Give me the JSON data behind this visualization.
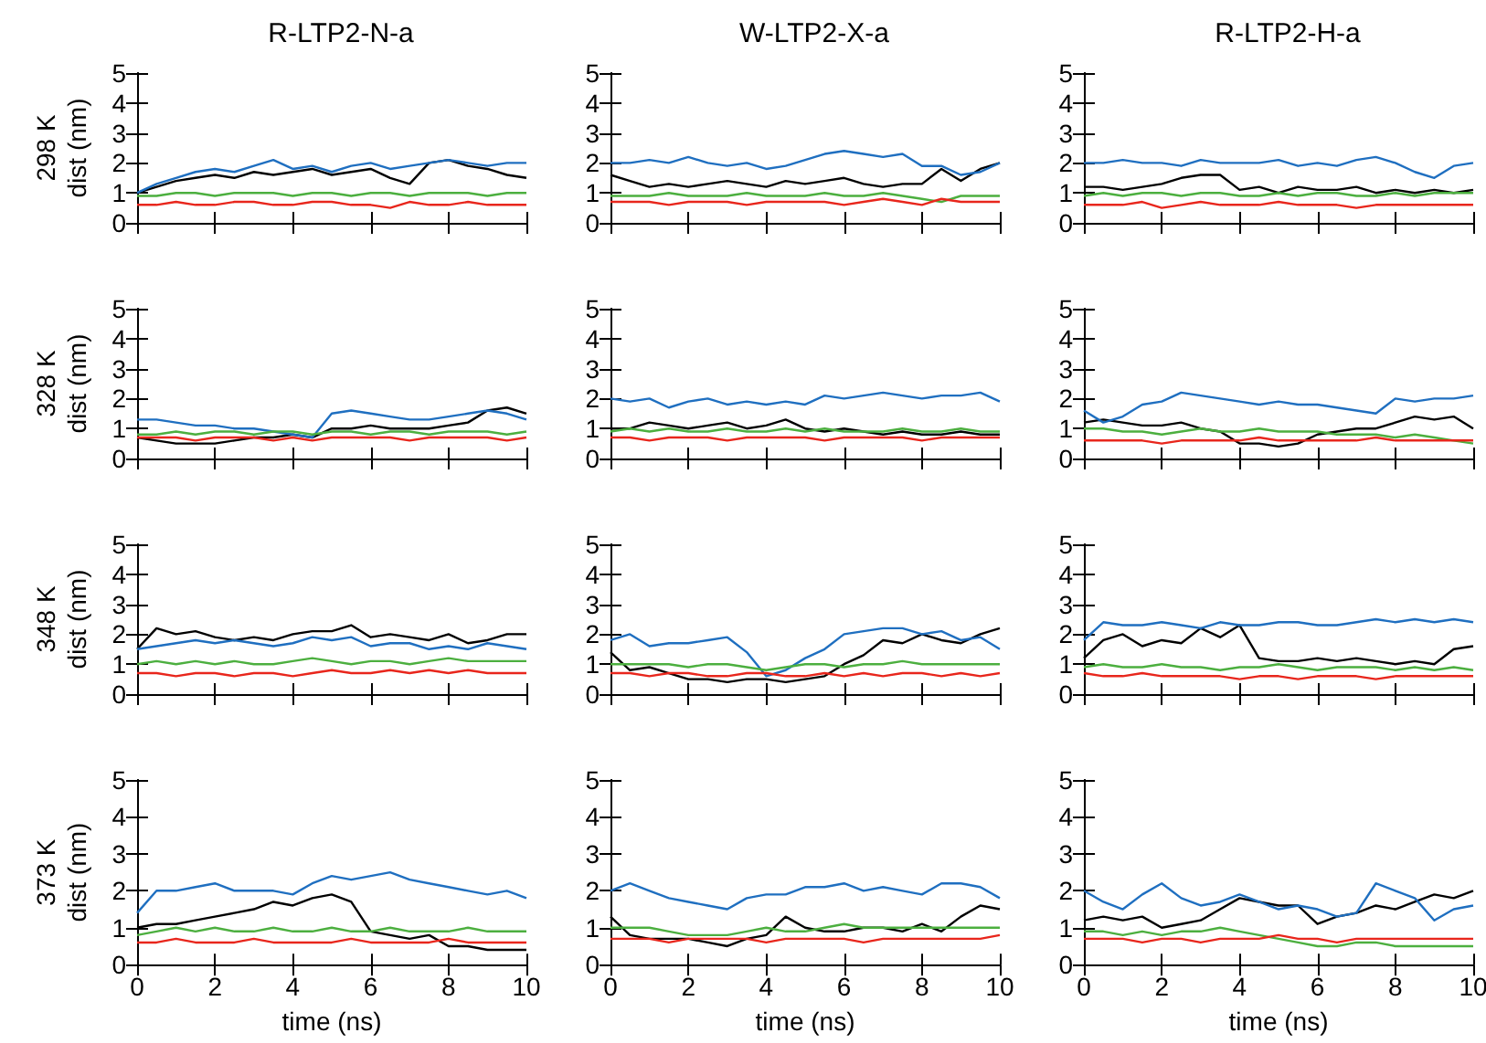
{
  "chart_data": [
    {
      "type": "line",
      "title": "R-LTP2-N-a",
      "ylabel": "298 K\ndist (nm)",
      "tick_labels": "y",
      "marker": "none",
      "x": [
        0,
        0.5,
        1,
        1.5,
        2,
        2.5,
        3,
        3.5,
        4,
        4.5,
        5,
        5.5,
        6,
        6.5,
        7,
        7.5,
        8,
        8.5,
        9,
        9.5,
        10
      ],
      "xlim": [
        0,
        10
      ],
      "xticks": [
        0,
        2,
        4,
        6,
        8,
        10
      ],
      "ylim": [
        0,
        5
      ],
      "yticks": [
        0,
        1,
        2,
        3,
        4,
        5
      ],
      "series": [
        {
          "color": "#000000",
          "values": [
            1.0,
            1.2,
            1.4,
            1.5,
            1.6,
            1.5,
            1.7,
            1.6,
            1.7,
            1.8,
            1.6,
            1.7,
            1.8,
            1.5,
            1.3,
            2.0,
            2.1,
            1.9,
            1.8,
            1.6,
            1.5
          ]
        },
        {
          "color": "#1f6fc0",
          "values": [
            1.0,
            1.3,
            1.5,
            1.7,
            1.8,
            1.7,
            1.9,
            2.1,
            1.8,
            1.9,
            1.7,
            1.9,
            2.0,
            1.8,
            1.9,
            2.0,
            2.1,
            2.0,
            1.9,
            2.0,
            2.0
          ]
        },
        {
          "color": "#4caf3f",
          "values": [
            0.9,
            0.9,
            1.0,
            1.0,
            0.9,
            1.0,
            1.0,
            1.0,
            0.9,
            1.0,
            1.0,
            0.9,
            1.0,
            1.0,
            0.9,
            1.0,
            1.0,
            1.0,
            0.9,
            1.0,
            1.0
          ]
        },
        {
          "color": "#e8261c",
          "values": [
            0.6,
            0.6,
            0.7,
            0.6,
            0.6,
            0.7,
            0.7,
            0.6,
            0.6,
            0.7,
            0.7,
            0.6,
            0.6,
            0.5,
            0.7,
            0.6,
            0.6,
            0.7,
            0.6,
            0.6,
            0.6
          ]
        }
      ]
    },
    {
      "type": "line",
      "title": "W-LTP2-X-a",
      "tick_labels": "y",
      "marker": "none",
      "x": [
        0,
        0.5,
        1,
        1.5,
        2,
        2.5,
        3,
        3.5,
        4,
        4.5,
        5,
        5.5,
        6,
        6.5,
        7,
        7.5,
        8,
        8.5,
        9,
        9.5,
        10
      ],
      "xlim": [
        0,
        10
      ],
      "xticks": [
        0,
        2,
        4,
        6,
        8,
        10
      ],
      "ylim": [
        0,
        5
      ],
      "yticks": [
        0,
        1,
        2,
        3,
        4,
        5
      ],
      "series": [
        {
          "color": "#000000",
          "values": [
            1.6,
            1.4,
            1.2,
            1.3,
            1.2,
            1.3,
            1.4,
            1.3,
            1.2,
            1.4,
            1.3,
            1.4,
            1.5,
            1.3,
            1.2,
            1.3,
            1.3,
            1.8,
            1.4,
            1.8,
            2.0
          ]
        },
        {
          "color": "#1f6fc0",
          "values": [
            2.0,
            2.0,
            2.1,
            2.0,
            2.2,
            2.0,
            1.9,
            2.0,
            1.8,
            1.9,
            2.1,
            2.3,
            2.4,
            2.3,
            2.2,
            2.3,
            1.9,
            1.9,
            1.6,
            1.7,
            2.0
          ]
        },
        {
          "color": "#4caf3f",
          "values": [
            0.9,
            0.9,
            0.9,
            1.0,
            0.9,
            0.9,
            0.9,
            1.0,
            0.9,
            0.9,
            0.9,
            1.0,
            0.9,
            0.9,
            1.0,
            0.9,
            0.8,
            0.7,
            0.9,
            0.9,
            0.9
          ]
        },
        {
          "color": "#e8261c",
          "values": [
            0.7,
            0.7,
            0.7,
            0.6,
            0.7,
            0.7,
            0.7,
            0.6,
            0.7,
            0.7,
            0.7,
            0.7,
            0.6,
            0.7,
            0.8,
            0.7,
            0.6,
            0.8,
            0.7,
            0.7,
            0.7
          ]
        }
      ]
    },
    {
      "type": "line",
      "title": "R-LTP2-H-a",
      "tick_labels": "y",
      "marker": "none",
      "x": [
        0,
        0.5,
        1,
        1.5,
        2,
        2.5,
        3,
        3.5,
        4,
        4.5,
        5,
        5.5,
        6,
        6.5,
        7,
        7.5,
        8,
        8.5,
        9,
        9.5,
        10
      ],
      "xlim": [
        0,
        10
      ],
      "xticks": [
        0,
        2,
        4,
        6,
        8,
        10
      ],
      "ylim": [
        0,
        5
      ],
      "yticks": [
        0,
        1,
        2,
        3,
        4,
        5
      ],
      "series": [
        {
          "color": "#000000",
          "values": [
            1.2,
            1.2,
            1.1,
            1.2,
            1.3,
            1.5,
            1.6,
            1.6,
            1.1,
            1.2,
            1.0,
            1.2,
            1.1,
            1.1,
            1.2,
            1.0,
            1.1,
            1.0,
            1.1,
            1.0,
            1.1
          ]
        },
        {
          "color": "#1f6fc0",
          "values": [
            2.0,
            2.0,
            2.1,
            2.0,
            2.0,
            1.9,
            2.1,
            2.0,
            2.0,
            2.0,
            2.1,
            1.9,
            2.0,
            1.9,
            2.1,
            2.2,
            2.0,
            1.7,
            1.5,
            1.9,
            2.0
          ]
        },
        {
          "color": "#4caf3f",
          "values": [
            0.9,
            1.0,
            0.9,
            1.0,
            1.0,
            0.9,
            1.0,
            1.0,
            0.9,
            0.9,
            1.0,
            0.9,
            1.0,
            1.0,
            0.9,
            0.9,
            1.0,
            0.9,
            1.0,
            1.0,
            1.0
          ]
        },
        {
          "color": "#e8261c",
          "values": [
            0.6,
            0.6,
            0.6,
            0.7,
            0.5,
            0.6,
            0.7,
            0.6,
            0.6,
            0.6,
            0.7,
            0.6,
            0.6,
            0.6,
            0.5,
            0.6,
            0.6,
            0.6,
            0.6,
            0.6,
            0.6
          ]
        }
      ]
    },
    {
      "type": "line",
      "ylabel": "328 K\ndist (nm)",
      "tick_labels": "y",
      "marker": "none",
      "x": [
        0,
        0.5,
        1,
        1.5,
        2,
        2.5,
        3,
        3.5,
        4,
        4.5,
        5,
        5.5,
        6,
        6.5,
        7,
        7.5,
        8,
        8.5,
        9,
        9.5,
        10
      ],
      "xlim": [
        0,
        10
      ],
      "xticks": [
        0,
        2,
        4,
        6,
        8,
        10
      ],
      "ylim": [
        0,
        5
      ],
      "yticks": [
        0,
        1,
        2,
        3,
        4,
        5
      ],
      "series": [
        {
          "color": "#000000",
          "values": [
            0.7,
            0.6,
            0.5,
            0.5,
            0.5,
            0.6,
            0.7,
            0.7,
            0.8,
            0.7,
            1.0,
            1.0,
            1.1,
            1.0,
            1.0,
            1.0,
            1.1,
            1.2,
            1.6,
            1.7,
            1.5
          ]
        },
        {
          "color": "#1f6fc0",
          "values": [
            1.3,
            1.3,
            1.2,
            1.1,
            1.1,
            1.0,
            1.0,
            0.9,
            0.8,
            0.7,
            1.5,
            1.6,
            1.5,
            1.4,
            1.3,
            1.3,
            1.4,
            1.5,
            1.6,
            1.5,
            1.3
          ]
        },
        {
          "color": "#4caf3f",
          "values": [
            0.8,
            0.8,
            0.9,
            0.8,
            0.9,
            0.9,
            0.8,
            0.9,
            0.9,
            0.8,
            0.9,
            0.9,
            0.8,
            0.9,
            0.9,
            0.8,
            0.9,
            0.9,
            0.9,
            0.8,
            0.9
          ]
        },
        {
          "color": "#e8261c",
          "values": [
            0.7,
            0.7,
            0.7,
            0.6,
            0.7,
            0.7,
            0.7,
            0.6,
            0.7,
            0.6,
            0.7,
            0.7,
            0.7,
            0.7,
            0.6,
            0.7,
            0.7,
            0.7,
            0.7,
            0.6,
            0.7
          ]
        }
      ]
    },
    {
      "type": "line",
      "tick_labels": "y",
      "marker": "none",
      "x": [
        0,
        0.5,
        1,
        1.5,
        2,
        2.5,
        3,
        3.5,
        4,
        4.5,
        5,
        5.5,
        6,
        6.5,
        7,
        7.5,
        8,
        8.5,
        9,
        9.5,
        10
      ],
      "xlim": [
        0,
        10
      ],
      "xticks": [
        0,
        2,
        4,
        6,
        8,
        10
      ],
      "ylim": [
        0,
        5
      ],
      "yticks": [
        0,
        1,
        2,
        3,
        4,
        5
      ],
      "series": [
        {
          "color": "#000000",
          "values": [
            1.0,
            1.0,
            1.2,
            1.1,
            1.0,
            1.1,
            1.2,
            1.0,
            1.1,
            1.3,
            1.0,
            0.9,
            1.0,
            0.9,
            0.8,
            0.9,
            0.8,
            0.8,
            0.9,
            0.8,
            0.8
          ]
        },
        {
          "color": "#1f6fc0",
          "values": [
            2.0,
            1.9,
            2.0,
            1.7,
            1.9,
            2.0,
            1.8,
            1.9,
            1.8,
            1.9,
            1.8,
            2.1,
            2.0,
            2.1,
            2.2,
            2.1,
            2.0,
            2.1,
            2.1,
            2.2,
            1.9
          ]
        },
        {
          "color": "#4caf3f",
          "values": [
            0.9,
            1.0,
            0.9,
            1.0,
            0.9,
            0.9,
            1.0,
            0.9,
            0.9,
            1.0,
            0.9,
            1.0,
            0.9,
            0.9,
            0.9,
            1.0,
            0.9,
            0.9,
            1.0,
            0.9,
            0.9
          ]
        },
        {
          "color": "#e8261c",
          "values": [
            0.7,
            0.7,
            0.6,
            0.7,
            0.7,
            0.7,
            0.6,
            0.7,
            0.7,
            0.7,
            0.7,
            0.6,
            0.7,
            0.7,
            0.7,
            0.7,
            0.6,
            0.7,
            0.7,
            0.7,
            0.7
          ]
        }
      ]
    },
    {
      "type": "line",
      "tick_labels": "y",
      "marker": "none",
      "x": [
        0,
        0.5,
        1,
        1.5,
        2,
        2.5,
        3,
        3.5,
        4,
        4.5,
        5,
        5.5,
        6,
        6.5,
        7,
        7.5,
        8,
        8.5,
        9,
        9.5,
        10
      ],
      "xlim": [
        0,
        10
      ],
      "xticks": [
        0,
        2,
        4,
        6,
        8,
        10
      ],
      "ylim": [
        0,
        5
      ],
      "yticks": [
        0,
        1,
        2,
        3,
        4,
        5
      ],
      "series": [
        {
          "color": "#000000",
          "values": [
            1.2,
            1.3,
            1.2,
            1.1,
            1.1,
            1.2,
            1.0,
            0.9,
            0.5,
            0.5,
            0.4,
            0.5,
            0.8,
            0.9,
            1.0,
            1.0,
            1.2,
            1.4,
            1.3,
            1.4,
            1.0
          ]
        },
        {
          "color": "#1f6fc0",
          "values": [
            1.6,
            1.2,
            1.4,
            1.8,
            1.9,
            2.2,
            2.1,
            2.0,
            1.9,
            1.8,
            1.9,
            1.8,
            1.8,
            1.7,
            1.6,
            1.5,
            2.0,
            1.9,
            2.0,
            2.0,
            2.1
          ]
        },
        {
          "color": "#4caf3f",
          "values": [
            1.0,
            1.0,
            0.9,
            0.9,
            0.8,
            0.9,
            1.0,
            0.9,
            0.9,
            1.0,
            0.9,
            0.9,
            0.9,
            0.8,
            0.8,
            0.8,
            0.7,
            0.8,
            0.7,
            0.6,
            0.5
          ]
        },
        {
          "color": "#e8261c",
          "values": [
            0.6,
            0.6,
            0.6,
            0.6,
            0.5,
            0.6,
            0.6,
            0.6,
            0.6,
            0.7,
            0.6,
            0.6,
            0.6,
            0.6,
            0.6,
            0.7,
            0.6,
            0.6,
            0.6,
            0.6,
            0.6
          ]
        }
      ]
    },
    {
      "type": "line",
      "ylabel": "348 K\ndist (nm)",
      "tick_labels": "y",
      "marker": "none",
      "x": [
        0,
        0.5,
        1,
        1.5,
        2,
        2.5,
        3,
        3.5,
        4,
        4.5,
        5,
        5.5,
        6,
        6.5,
        7,
        7.5,
        8,
        8.5,
        9,
        9.5,
        10
      ],
      "xlim": [
        0,
        10
      ],
      "xticks": [
        0,
        2,
        4,
        6,
        8,
        10
      ],
      "ylim": [
        0,
        5
      ],
      "yticks": [
        0,
        1,
        2,
        3,
        4,
        5
      ],
      "series": [
        {
          "color": "#000000",
          "values": [
            1.5,
            2.2,
            2.0,
            2.1,
            1.9,
            1.8,
            1.9,
            1.8,
            2.0,
            2.1,
            2.1,
            2.3,
            1.9,
            2.0,
            1.9,
            1.8,
            2.0,
            1.7,
            1.8,
            2.0,
            2.0
          ]
        },
        {
          "color": "#1f6fc0",
          "values": [
            1.5,
            1.6,
            1.7,
            1.8,
            1.7,
            1.8,
            1.7,
            1.6,
            1.7,
            1.9,
            1.8,
            1.9,
            1.6,
            1.7,
            1.7,
            1.5,
            1.6,
            1.5,
            1.7,
            1.6,
            1.5
          ]
        },
        {
          "color": "#4caf3f",
          "values": [
            1.0,
            1.1,
            1.0,
            1.1,
            1.0,
            1.1,
            1.0,
            1.0,
            1.1,
            1.2,
            1.1,
            1.0,
            1.1,
            1.1,
            1.0,
            1.1,
            1.2,
            1.1,
            1.1,
            1.1,
            1.1
          ]
        },
        {
          "color": "#e8261c",
          "values": [
            0.7,
            0.7,
            0.6,
            0.7,
            0.7,
            0.6,
            0.7,
            0.7,
            0.6,
            0.7,
            0.8,
            0.7,
            0.7,
            0.8,
            0.7,
            0.8,
            0.7,
            0.8,
            0.7,
            0.7,
            0.7
          ]
        }
      ]
    },
    {
      "type": "line",
      "tick_labels": "y",
      "marker": "none",
      "x": [
        0,
        0.5,
        1,
        1.5,
        2,
        2.5,
        3,
        3.5,
        4,
        4.5,
        5,
        5.5,
        6,
        6.5,
        7,
        7.5,
        8,
        8.5,
        9,
        9.5,
        10
      ],
      "xlim": [
        0,
        10
      ],
      "xticks": [
        0,
        2,
        4,
        6,
        8,
        10
      ],
      "ylim": [
        0,
        5
      ],
      "yticks": [
        0,
        1,
        2,
        3,
        4,
        5
      ],
      "series": [
        {
          "color": "#000000",
          "values": [
            1.4,
            0.8,
            0.9,
            0.7,
            0.5,
            0.5,
            0.4,
            0.5,
            0.5,
            0.4,
            0.5,
            0.6,
            1.0,
            1.3,
            1.8,
            1.7,
            2.0,
            1.8,
            1.7,
            2.0,
            2.2
          ]
        },
        {
          "color": "#1f6fc0",
          "values": [
            1.8,
            2.0,
            1.6,
            1.7,
            1.7,
            1.8,
            1.9,
            1.4,
            0.6,
            0.8,
            1.2,
            1.5,
            2.0,
            2.1,
            2.2,
            2.2,
            2.0,
            2.1,
            1.8,
            1.9,
            1.5
          ]
        },
        {
          "color": "#4caf3f",
          "values": [
            1.0,
            1.0,
            1.0,
            1.0,
            0.9,
            1.0,
            1.0,
            0.9,
            0.8,
            0.9,
            1.0,
            1.0,
            0.9,
            1.0,
            1.0,
            1.1,
            1.0,
            1.0,
            1.0,
            1.0,
            1.0
          ]
        },
        {
          "color": "#e8261c",
          "values": [
            0.7,
            0.7,
            0.6,
            0.7,
            0.7,
            0.6,
            0.6,
            0.7,
            0.7,
            0.6,
            0.6,
            0.7,
            0.6,
            0.7,
            0.6,
            0.7,
            0.7,
            0.6,
            0.7,
            0.6,
            0.7
          ]
        }
      ]
    },
    {
      "type": "line",
      "tick_labels": "y",
      "marker": "none",
      "x": [
        0,
        0.5,
        1,
        1.5,
        2,
        2.5,
        3,
        3.5,
        4,
        4.5,
        5,
        5.5,
        6,
        6.5,
        7,
        7.5,
        8,
        8.5,
        9,
        9.5,
        10
      ],
      "xlim": [
        0,
        10
      ],
      "xticks": [
        0,
        2,
        4,
        6,
        8,
        10
      ],
      "ylim": [
        0,
        5
      ],
      "yticks": [
        0,
        1,
        2,
        3,
        4,
        5
      ],
      "series": [
        {
          "color": "#000000",
          "values": [
            1.2,
            1.8,
            2.0,
            1.6,
            1.8,
            1.7,
            2.2,
            1.9,
            2.3,
            1.2,
            1.1,
            1.1,
            1.2,
            1.1,
            1.2,
            1.1,
            1.0,
            1.1,
            1.0,
            1.5,
            1.6
          ]
        },
        {
          "color": "#1f6fc0",
          "values": [
            1.8,
            2.4,
            2.3,
            2.3,
            2.4,
            2.3,
            2.2,
            2.4,
            2.3,
            2.3,
            2.4,
            2.4,
            2.3,
            2.3,
            2.4,
            2.5,
            2.4,
            2.5,
            2.4,
            2.5,
            2.4
          ]
        },
        {
          "color": "#4caf3f",
          "values": [
            0.9,
            1.0,
            0.9,
            0.9,
            1.0,
            0.9,
            0.9,
            0.8,
            0.9,
            0.9,
            1.0,
            0.9,
            0.8,
            0.9,
            0.9,
            0.9,
            0.8,
            0.9,
            0.8,
            0.9,
            0.8
          ]
        },
        {
          "color": "#e8261c",
          "values": [
            0.7,
            0.6,
            0.6,
            0.7,
            0.6,
            0.6,
            0.6,
            0.6,
            0.5,
            0.6,
            0.6,
            0.5,
            0.6,
            0.6,
            0.6,
            0.5,
            0.6,
            0.6,
            0.6,
            0.6,
            0.6
          ]
        }
      ]
    },
    {
      "type": "line",
      "ylabel": "373 K\ndist (nm)",
      "xlabel": "time (ns)",
      "marker": "none",
      "x": [
        0,
        0.5,
        1,
        1.5,
        2,
        2.5,
        3,
        3.5,
        4,
        4.5,
        5,
        5.5,
        6,
        6.5,
        7,
        7.5,
        8,
        8.5,
        9,
        9.5,
        10
      ],
      "xlim": [
        0,
        10
      ],
      "xticks": [
        0,
        2,
        4,
        6,
        8,
        10
      ],
      "ylim": [
        0,
        5
      ],
      "yticks": [
        0,
        1,
        2,
        3,
        4,
        5
      ],
      "series": [
        {
          "color": "#000000",
          "values": [
            1.0,
            1.1,
            1.1,
            1.2,
            1.3,
            1.4,
            1.5,
            1.7,
            1.6,
            1.8,
            1.9,
            1.7,
            0.9,
            0.8,
            0.7,
            0.8,
            0.5,
            0.5,
            0.4,
            0.4,
            0.4
          ]
        },
        {
          "color": "#1f6fc0",
          "values": [
            1.4,
            2.0,
            2.0,
            2.1,
            2.2,
            2.0,
            2.0,
            2.0,
            1.9,
            2.2,
            2.4,
            2.3,
            2.4,
            2.5,
            2.3,
            2.2,
            2.1,
            2.0,
            1.9,
            2.0,
            1.8
          ]
        },
        {
          "color": "#4caf3f",
          "values": [
            0.8,
            0.9,
            1.0,
            0.9,
            1.0,
            0.9,
            0.9,
            1.0,
            0.9,
            0.9,
            1.0,
            0.9,
            0.9,
            1.0,
            0.9,
            0.9,
            0.9,
            1.0,
            0.9,
            0.9,
            0.9
          ]
        },
        {
          "color": "#e8261c",
          "values": [
            0.6,
            0.6,
            0.7,
            0.6,
            0.6,
            0.6,
            0.7,
            0.6,
            0.6,
            0.6,
            0.6,
            0.7,
            0.6,
            0.6,
            0.6,
            0.6,
            0.7,
            0.6,
            0.6,
            0.6,
            0.6
          ]
        }
      ]
    },
    {
      "type": "line",
      "xlabel": "time (ns)",
      "marker": "none",
      "x": [
        0,
        0.5,
        1,
        1.5,
        2,
        2.5,
        3,
        3.5,
        4,
        4.5,
        5,
        5.5,
        6,
        6.5,
        7,
        7.5,
        8,
        8.5,
        9,
        9.5,
        10
      ],
      "xlim": [
        0,
        10
      ],
      "xticks": [
        0,
        2,
        4,
        6,
        8,
        10
      ],
      "ylim": [
        0,
        5
      ],
      "yticks": [
        0,
        1,
        2,
        3,
        4,
        5
      ],
      "series": [
        {
          "color": "#000000",
          "values": [
            1.3,
            0.8,
            0.7,
            0.7,
            0.7,
            0.6,
            0.5,
            0.7,
            0.8,
            1.3,
            1.0,
            0.9,
            0.9,
            1.0,
            1.0,
            0.9,
            1.1,
            0.9,
            1.3,
            1.6,
            1.5
          ]
        },
        {
          "color": "#1f6fc0",
          "values": [
            2.0,
            2.2,
            2.0,
            1.8,
            1.7,
            1.6,
            1.5,
            1.8,
            1.9,
            1.9,
            2.1,
            2.1,
            2.2,
            2.0,
            2.1,
            2.0,
            1.9,
            2.2,
            2.2,
            2.1,
            1.8
          ]
        },
        {
          "color": "#4caf3f",
          "values": [
            1.0,
            1.0,
            1.0,
            0.9,
            0.8,
            0.8,
            0.8,
            0.9,
            1.0,
            0.9,
            0.9,
            1.0,
            1.1,
            1.0,
            1.0,
            1.0,
            1.0,
            1.0,
            1.0,
            1.0,
            1.0
          ]
        },
        {
          "color": "#e8261c",
          "values": [
            0.7,
            0.7,
            0.7,
            0.6,
            0.7,
            0.7,
            0.7,
            0.7,
            0.6,
            0.7,
            0.7,
            0.7,
            0.7,
            0.6,
            0.7,
            0.7,
            0.7,
            0.7,
            0.7,
            0.7,
            0.8
          ]
        }
      ]
    },
    {
      "type": "line",
      "xlabel": "time (ns)",
      "marker": "none",
      "x": [
        0,
        0.5,
        1,
        1.5,
        2,
        2.5,
        3,
        3.5,
        4,
        4.5,
        5,
        5.5,
        6,
        6.5,
        7,
        7.5,
        8,
        8.5,
        9,
        9.5,
        10
      ],
      "xlim": [
        0,
        10
      ],
      "xticks": [
        0,
        2,
        4,
        6,
        8,
        10
      ],
      "ylim": [
        0,
        5
      ],
      "yticks": [
        0,
        1,
        2,
        3,
        4,
        5
      ],
      "series": [
        {
          "color": "#000000",
          "values": [
            1.2,
            1.3,
            1.2,
            1.3,
            1.0,
            1.1,
            1.2,
            1.5,
            1.8,
            1.7,
            1.6,
            1.6,
            1.1,
            1.3,
            1.4,
            1.6,
            1.5,
            1.7,
            1.9,
            1.8,
            2.0
          ]
        },
        {
          "color": "#1f6fc0",
          "values": [
            2.0,
            1.7,
            1.5,
            1.9,
            2.2,
            1.8,
            1.6,
            1.7,
            1.9,
            1.7,
            1.5,
            1.6,
            1.5,
            1.3,
            1.4,
            2.2,
            2.0,
            1.8,
            1.2,
            1.5,
            1.6
          ]
        },
        {
          "color": "#4caf3f",
          "values": [
            0.9,
            0.9,
            0.8,
            0.9,
            0.8,
            0.9,
            0.9,
            1.0,
            0.9,
            0.8,
            0.7,
            0.6,
            0.5,
            0.5,
            0.6,
            0.6,
            0.5,
            0.5,
            0.5,
            0.5,
            0.5
          ]
        },
        {
          "color": "#e8261c",
          "values": [
            0.7,
            0.7,
            0.7,
            0.6,
            0.7,
            0.7,
            0.6,
            0.7,
            0.7,
            0.7,
            0.8,
            0.7,
            0.7,
            0.6,
            0.7,
            0.7,
            0.7,
            0.7,
            0.7,
            0.7,
            0.7
          ]
        }
      ]
    }
  ]
}
